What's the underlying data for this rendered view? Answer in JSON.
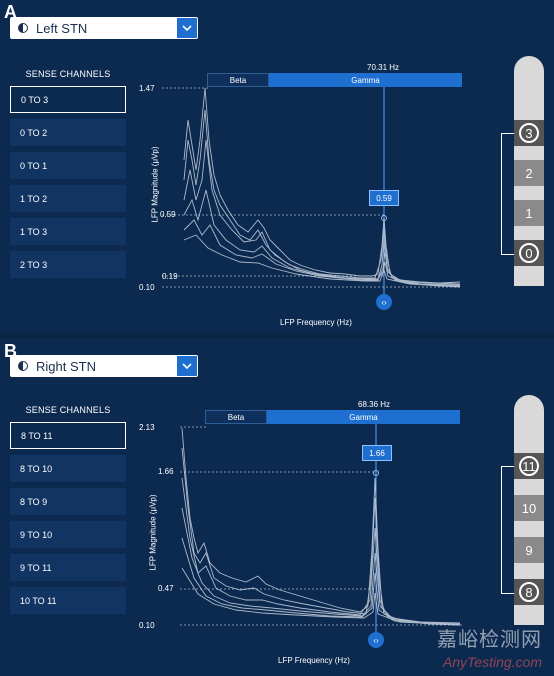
{
  "panels": [
    {
      "letter": "A",
      "dropdown_label": "Left STN",
      "sense_title": "SENSE CHANNELS",
      "channels": [
        "0 TO 3",
        "0 TO 2",
        "0 TO 1",
        "1 TO 2",
        "1 TO 3",
        "2 TO 3"
      ],
      "selected_channel": "0 TO 3",
      "freq_readout": "70.31 Hz",
      "band_beta": "Beta",
      "band_gamma": "Gamma",
      "y_axis_label": "LFP Magnitude (μVp)",
      "x_axis_label": "LFP Frequency (Hz)",
      "y_ticks": [
        "1.47",
        "0.59",
        "0.19",
        "0.10"
      ],
      "value_box": "0.59",
      "handle_glyph": "‹›",
      "lead_contacts": [
        "3",
        "2",
        "1",
        "0"
      ],
      "highlighted_contacts": [
        "3",
        "0"
      ]
    },
    {
      "letter": "B",
      "dropdown_label": "Right STN",
      "sense_title": "SENSE CHANNELS",
      "channels": [
        "8 TO 11",
        "8 TO 10",
        "8 TO 9",
        "9 TO 10",
        "9 TO 11",
        "10 TO 11"
      ],
      "selected_channel": "8 TO 11",
      "freq_readout": "68.36 Hz",
      "band_beta": "Beta",
      "band_gamma": "Gamma",
      "y_axis_label": "LFP Magnitude (μVp)",
      "x_axis_label": "LFP Frequency (Hz)",
      "y_ticks": [
        "2.13",
        "1.66",
        "0.47",
        "0.10"
      ],
      "value_box": "1.66",
      "handle_glyph": "‹›",
      "lead_contacts": [
        "11",
        "10",
        "9",
        "8"
      ],
      "highlighted_contacts": [
        "11",
        "8"
      ]
    }
  ],
  "watermark": {
    "cn": "嘉峪检测网",
    "en": "AnyTesting.com"
  },
  "colors": {
    "background": "#0b2545",
    "accent": "#1e6fd0",
    "trace": "#c9d3e0"
  },
  "icons": [
    "half-circle-icon",
    "chevron-down-icon",
    "drag-handle-icon"
  ]
}
